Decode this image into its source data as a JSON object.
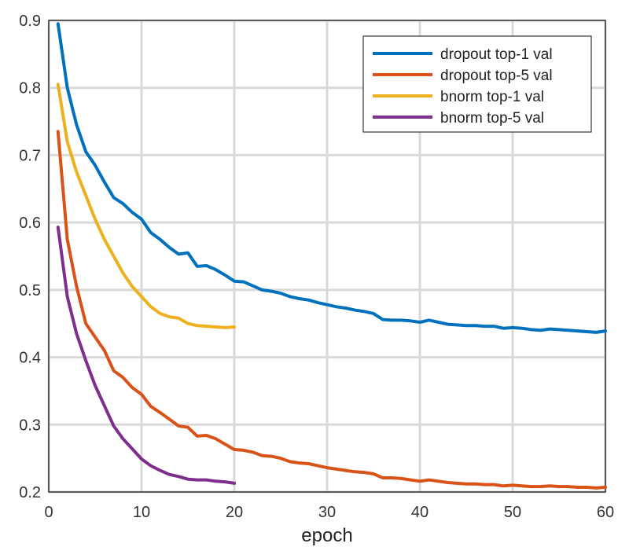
{
  "chart_data": {
    "type": "line",
    "title": "",
    "xlabel": "epoch",
    "ylabel": "",
    "xlim": [
      0,
      60
    ],
    "ylim": [
      0.2,
      0.9
    ],
    "grid": true,
    "legend_position": "top-right",
    "xticks": [
      0,
      10,
      20,
      30,
      40,
      50,
      60
    ],
    "xtick_labels": [
      "0",
      "10",
      "20",
      "30",
      "40",
      "50",
      "60"
    ],
    "yticks": [
      0.2,
      0.3,
      0.4,
      0.5,
      0.6,
      0.7,
      0.8,
      0.9
    ],
    "ytick_labels": [
      "0.2",
      "0.3",
      "0.4",
      "0.5",
      "0.6",
      "0.7",
      "0.8",
      "0.9"
    ],
    "series": [
      {
        "name": "dropout top-1 val",
        "color": "#0072BD",
        "x": [
          1,
          2,
          3,
          4,
          5,
          6,
          7,
          8,
          9,
          10,
          11,
          12,
          13,
          14,
          15,
          16,
          17,
          18,
          19,
          20,
          21,
          22,
          23,
          24,
          25,
          26,
          27,
          28,
          29,
          30,
          31,
          32,
          33,
          34,
          35,
          36,
          37,
          38,
          39,
          40,
          41,
          42,
          43,
          44,
          45,
          46,
          47,
          48,
          49,
          50,
          51,
          52,
          53,
          54,
          55,
          56,
          57,
          58,
          59,
          60
        ],
        "y": [
          0.895,
          0.8,
          0.745,
          0.705,
          0.685,
          0.66,
          0.637,
          0.628,
          0.615,
          0.605,
          0.585,
          0.575,
          0.563,
          0.553,
          0.555,
          0.535,
          0.536,
          0.53,
          0.522,
          0.513,
          0.512,
          0.506,
          0.5,
          0.498,
          0.495,
          0.49,
          0.487,
          0.485,
          0.481,
          0.478,
          0.475,
          0.473,
          0.47,
          0.468,
          0.465,
          0.456,
          0.455,
          0.455,
          0.454,
          0.452,
          0.455,
          0.452,
          0.449,
          0.448,
          0.447,
          0.447,
          0.446,
          0.446,
          0.443,
          0.444,
          0.443,
          0.441,
          0.44,
          0.442,
          0.441,
          0.44,
          0.439,
          0.438,
          0.437,
          0.439
        ]
      },
      {
        "name": "dropout top-5 val",
        "color": "#D95319",
        "x": [
          1,
          2,
          3,
          4,
          5,
          6,
          7,
          8,
          9,
          10,
          11,
          12,
          13,
          14,
          15,
          16,
          17,
          18,
          19,
          20,
          21,
          22,
          23,
          24,
          25,
          26,
          27,
          28,
          29,
          30,
          31,
          32,
          33,
          34,
          35,
          36,
          37,
          38,
          39,
          40,
          41,
          42,
          43,
          44,
          45,
          46,
          47,
          48,
          49,
          50,
          51,
          52,
          53,
          54,
          55,
          56,
          57,
          58,
          59,
          60
        ],
        "y": [
          0.735,
          0.575,
          0.505,
          0.45,
          0.43,
          0.41,
          0.38,
          0.37,
          0.355,
          0.345,
          0.327,
          0.318,
          0.308,
          0.298,
          0.296,
          0.283,
          0.284,
          0.279,
          0.271,
          0.263,
          0.262,
          0.259,
          0.254,
          0.253,
          0.25,
          0.245,
          0.243,
          0.242,
          0.239,
          0.236,
          0.234,
          0.232,
          0.23,
          0.229,
          0.227,
          0.221,
          0.221,
          0.22,
          0.218,
          0.216,
          0.218,
          0.216,
          0.214,
          0.213,
          0.212,
          0.212,
          0.211,
          0.211,
          0.209,
          0.21,
          0.209,
          0.208,
          0.208,
          0.209,
          0.208,
          0.208,
          0.207,
          0.207,
          0.206,
          0.207
        ]
      },
      {
        "name": "bnorm top-1 val",
        "color": "#EDB120",
        "x": [
          1,
          2,
          3,
          4,
          5,
          6,
          7,
          8,
          9,
          10,
          11,
          12,
          13,
          14,
          15,
          16,
          17,
          18,
          19,
          20
        ],
        "y": [
          0.805,
          0.72,
          0.675,
          0.64,
          0.605,
          0.575,
          0.55,
          0.525,
          0.505,
          0.49,
          0.475,
          0.465,
          0.46,
          0.458,
          0.45,
          0.447,
          0.446,
          0.445,
          0.444,
          0.445
        ]
      },
      {
        "name": "bnorm top-5 val",
        "color": "#7E2F8E",
        "x": [
          1,
          2,
          3,
          4,
          5,
          6,
          7,
          8,
          9,
          10,
          11,
          12,
          13,
          14,
          15,
          16,
          17,
          18,
          19,
          20
        ],
        "y": [
          0.593,
          0.49,
          0.435,
          0.395,
          0.358,
          0.328,
          0.298,
          0.279,
          0.264,
          0.249,
          0.239,
          0.232,
          0.226,
          0.223,
          0.219,
          0.218,
          0.218,
          0.216,
          0.215,
          0.213
        ]
      }
    ]
  }
}
